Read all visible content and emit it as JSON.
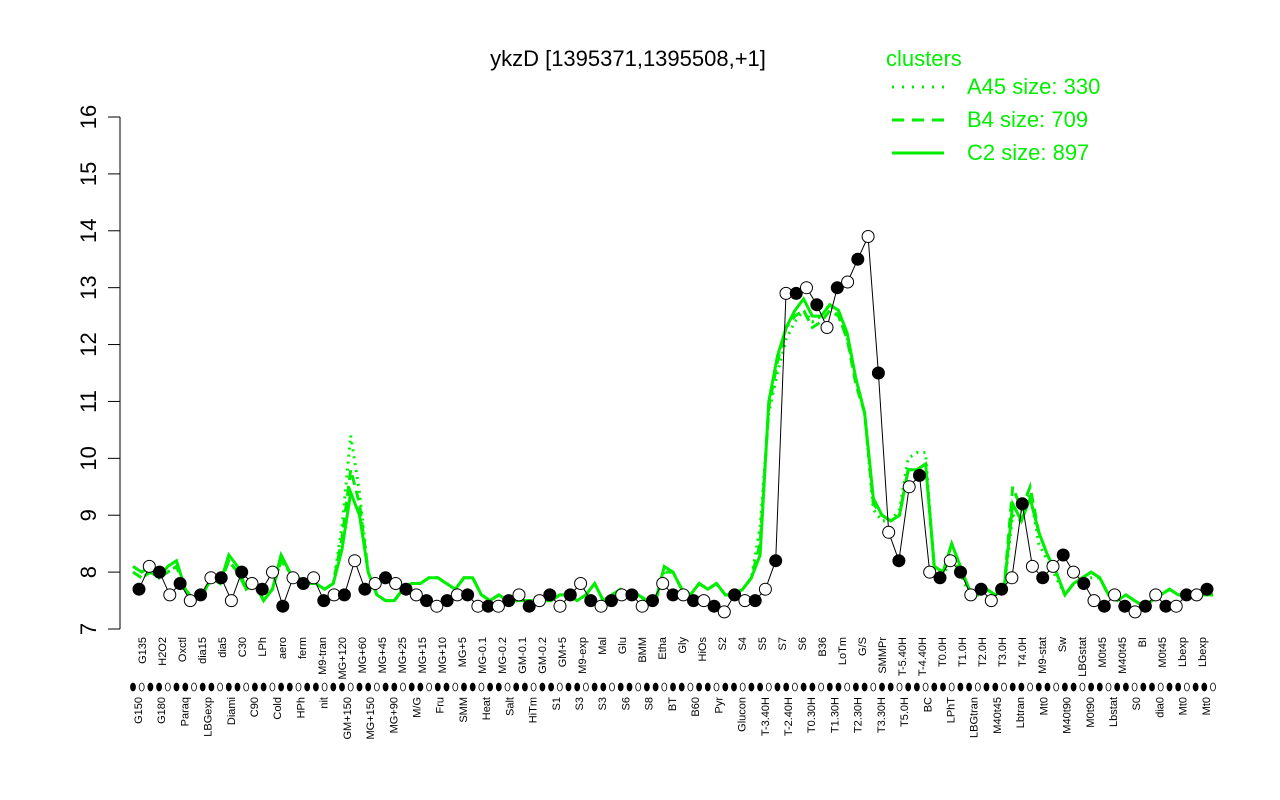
{
  "chart_data": {
    "type": "line",
    "title": "ykzD [1395371,1395508,+1]",
    "xlabel": "",
    "ylabel": "",
    "ylim": [
      7,
      16
    ],
    "yticks": [
      7,
      8,
      9,
      10,
      11,
      12,
      13,
      14,
      15,
      16
    ],
    "grid": false,
    "legend_position": "top-right",
    "legend": {
      "title": "clusters",
      "entries": [
        {
          "label": "A45 size: 330",
          "style": "dotted",
          "color": "#00ee00"
        },
        {
          "label": "B4 size: 709",
          "style": "dashed",
          "color": "#00ee00"
        },
        {
          "label": "C2 size: 897",
          "style": "solid",
          "color": "#00ee00"
        }
      ]
    },
    "x_tick_labels_top": [
      "G135",
      "H2O2",
      "Oxctl",
      "dia15",
      "dia5",
      "C30",
      "LPh",
      "aero",
      "ferm",
      "M9-tran",
      "MG+120",
      "MG+60",
      "MG+45",
      "MG+25",
      "MG+15",
      "MG+10",
      "MG+5",
      "MG-0.1",
      "MG-0.2",
      "GM-0.1",
      "GM-0.2",
      "GM+5",
      "M9-exp",
      "Mal",
      "Glu",
      "BMM",
      "Etha",
      "Gly",
      "HiOs",
      "S2",
      "S4",
      "S5",
      "S7",
      "S6",
      "B36",
      "LoTm",
      "G/S",
      "SMMPr",
      "T-5.40H",
      "T-4.40H",
      "T0.0H",
      "T1.0H",
      "T2.0H",
      "T3.0H",
      "T4.0H",
      "M9-stat",
      "Sw",
      "LBGstat",
      "M0t45",
      "M40t45",
      "BI",
      "M0t45",
      "Lbexp",
      "Lbexp"
    ],
    "x_tick_labels_bottom": [
      "G150",
      "G180",
      "Paraq",
      "LBGexp",
      "Diami",
      "C90",
      "Cold",
      "HPh",
      "nit",
      "GM+150",
      "MG+150",
      "MG+90",
      "M/G",
      "Fru",
      "SMM",
      "Heat",
      "Salt",
      "HiTm",
      "S1",
      "S3",
      "S3",
      "S6",
      "S8",
      "BT",
      "B60",
      "Pyr",
      "Glucon",
      "T-3.40H",
      "T-2.40H",
      "T0.30H",
      "T1.30H",
      "T2.30H",
      "T3.30H",
      "T5.0H",
      "BC",
      "LPhT",
      "LBGtran",
      "M40t45",
      "Lbtran",
      "Mt0",
      "M40t90",
      "M0t90",
      "Lbstat",
      "S0",
      "dia0",
      "Mt0",
      "Mt0"
    ],
    "series": [
      {
        "style": "solid",
        "values": [
          8.1,
          8.0,
          8.1,
          7.9,
          8.1,
          8.2,
          7.7,
          7.5,
          7.6,
          7.9,
          7.8,
          8.3,
          8.1,
          7.7,
          7.8,
          7.5,
          7.7,
          8.3,
          8.0,
          7.9,
          7.8,
          7.8,
          7.7,
          7.8,
          8.4,
          9.4,
          9.0,
          8.0,
          7.6,
          7.5,
          7.5,
          7.7,
          7.8,
          7.8,
          7.9,
          7.9,
          7.8,
          7.7,
          7.9,
          7.9,
          7.6,
          7.5,
          7.6,
          7.5,
          7.5,
          7.5,
          7.5,
          7.5,
          7.5,
          7.6,
          7.6,
          7.5,
          7.6,
          7.8,
          7.5,
          7.6,
          7.7,
          7.6,
          7.6,
          7.5,
          7.5,
          8.1,
          8.0,
          7.7,
          7.6,
          7.8,
          7.7,
          7.8,
          7.6,
          7.6,
          7.7,
          7.9,
          8.3,
          11.0,
          11.8,
          12.3,
          12.6,
          12.8,
          12.5,
          12.5,
          12.7,
          12.6,
          12.2,
          11.4,
          10.8,
          9.3,
          9.0,
          8.9,
          9.0,
          9.8,
          9.8,
          9.9,
          8.1,
          8.0,
          8.5,
          8.1,
          7.7,
          7.6,
          7.7,
          7.6,
          7.7,
          9.2,
          8.9,
          9.3,
          8.7,
          8.3,
          8.0,
          7.6,
          7.8,
          7.9,
          8.0,
          7.9,
          7.6,
          7.5,
          7.6,
          7.5,
          7.4,
          7.5,
          7.6,
          7.7,
          7.6,
          7.6,
          7.6,
          7.6,
          7.6
        ]
      },
      {
        "style": "dashed",
        "values": [
          8.0,
          7.9,
          8.0,
          7.9,
          8.0,
          8.1,
          7.7,
          7.5,
          7.6,
          7.9,
          7.8,
          8.2,
          8.0,
          7.7,
          7.8,
          7.5,
          7.7,
          8.2,
          8.0,
          7.9,
          7.8,
          7.8,
          7.7,
          7.8,
          8.6,
          9.8,
          9.2,
          8.0,
          7.6,
          7.5,
          7.5,
          7.7,
          7.8,
          7.8,
          7.9,
          7.9,
          7.8,
          7.7,
          7.9,
          7.9,
          7.6,
          7.5,
          7.6,
          7.5,
          7.5,
          7.5,
          7.5,
          7.5,
          7.5,
          7.6,
          7.6,
          7.5,
          7.6,
          7.8,
          7.5,
          7.6,
          7.7,
          7.6,
          7.6,
          7.5,
          7.5,
          8.0,
          8.0,
          7.7,
          7.6,
          7.8,
          7.7,
          7.8,
          7.6,
          7.6,
          7.7,
          7.9,
          8.5,
          10.9,
          11.7,
          12.3,
          12.5,
          12.6,
          12.3,
          12.4,
          12.6,
          12.5,
          12.1,
          11.3,
          10.8,
          9.2,
          9.0,
          8.9,
          9.0,
          9.8,
          9.8,
          9.9,
          8.1,
          8.0,
          8.5,
          8.1,
          7.7,
          7.6,
          7.7,
          7.6,
          7.7,
          9.5,
          9.1,
          9.5,
          8.7,
          8.3,
          8.0,
          7.6,
          7.8,
          7.9,
          8.0,
          7.9,
          7.6,
          7.5,
          7.6,
          7.5,
          7.4,
          7.5,
          7.6,
          7.7,
          7.6,
          7.6,
          7.6,
          7.6,
          7.6
        ]
      },
      {
        "style": "dotted",
        "values": [
          8.0,
          7.9,
          8.0,
          7.9,
          8.0,
          8.1,
          7.7,
          7.5,
          7.6,
          7.9,
          7.8,
          8.2,
          8.0,
          7.7,
          7.8,
          7.5,
          7.7,
          8.2,
          8.0,
          7.9,
          7.8,
          7.8,
          7.7,
          7.8,
          8.8,
          10.4,
          9.4,
          8.0,
          7.6,
          7.5,
          7.5,
          7.7,
          7.8,
          7.8,
          7.9,
          7.9,
          7.8,
          7.7,
          7.9,
          7.9,
          7.6,
          7.5,
          7.6,
          7.5,
          7.5,
          7.5,
          7.5,
          7.5,
          7.5,
          7.6,
          7.6,
          7.5,
          7.6,
          7.8,
          7.5,
          7.6,
          7.7,
          7.6,
          7.6,
          7.5,
          7.5,
          8.0,
          8.0,
          7.7,
          7.6,
          7.8,
          7.7,
          7.8,
          7.6,
          7.6,
          7.7,
          7.9,
          8.8,
          10.8,
          11.5,
          12.1,
          12.4,
          12.6,
          12.4,
          12.5,
          12.7,
          12.5,
          12.1,
          11.4,
          10.8,
          9.1,
          8.9,
          8.9,
          9.1,
          10.0,
          10.1,
          10.1,
          8.0,
          7.9,
          8.3,
          8.0,
          7.6,
          7.6,
          7.7,
          7.6,
          7.7,
          9.0,
          8.9,
          9.4,
          8.5,
          8.2,
          7.9,
          7.6,
          7.8,
          7.9,
          7.9,
          7.9,
          7.6,
          7.5,
          7.6,
          7.5,
          7.4,
          7.5,
          7.6,
          7.7,
          7.6,
          7.6,
          7.6,
          7.6,
          7.6
        ]
      }
    ],
    "points_filled": [
      [
        7.7,
        8.1,
        8.0,
        7.6,
        7.8,
        7.5,
        7.6,
        7.9,
        7.9,
        7.5,
        8.0,
        7.8,
        7.7,
        8.0,
        7.4,
        7.9,
        7.8,
        7.9,
        7.5,
        7.6,
        7.6,
        8.2,
        7.7,
        7.8,
        7.9,
        7.8,
        7.7,
        7.6,
        7.5,
        7.4,
        7.5,
        7.6,
        7.6,
        7.4,
        7.4,
        7.4,
        7.5,
        7.6,
        7.4,
        7.5,
        7.6,
        7.4,
        7.6,
        7.8,
        7.5,
        7.4,
        7.5,
        7.6,
        7.6,
        7.4,
        7.5,
        7.8,
        7.6,
        7.6,
        7.5,
        7.5,
        7.4,
        7.3,
        7.6,
        7.5,
        7.5,
        7.7,
        8.2,
        12.9,
        12.9,
        13.0,
        12.7,
        12.3,
        13.0,
        13.1,
        13.5,
        13.9,
        11.5,
        8.7,
        8.2,
        9.5,
        9.7,
        8.0,
        7.9,
        8.2,
        8.0,
        7.6,
        7.7,
        7.5,
        7.7,
        7.9,
        9.2,
        8.1,
        7.9,
        8.1,
        8.3,
        8.0,
        7.8,
        7.5,
        7.4,
        7.6,
        7.4,
        7.3,
        7.4,
        7.6,
        7.4,
        7.4,
        7.6,
        7.6,
        7.7
      ]
    ]
  }
}
